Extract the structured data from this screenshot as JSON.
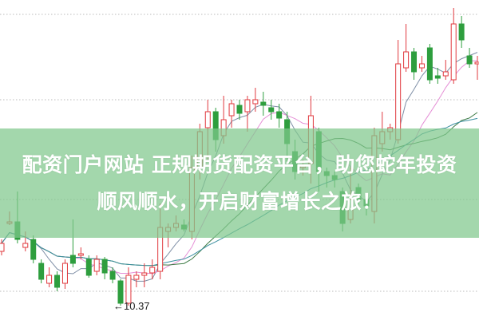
{
  "banner": {
    "line1": "配资门户网站 正规期货配资平台，助您蛇年投资",
    "line2": "顺风顺水，开启财富增长之旅！"
  },
  "chart_data": {
    "type": "candlestick",
    "title": "",
    "annotations": [
      {
        "text": "←10.37",
        "price": 10.37
      }
    ],
    "grid": "horizontal dotted",
    "colors": {
      "up": "#e0393e",
      "down": "#2e9e3e",
      "ma5": "#7f8fa6",
      "ma10": "#e58fd6",
      "ma20": "#3c7a44",
      "ma30": "#3b8fa0"
    },
    "moving_averages": [
      5,
      10,
      20,
      30
    ],
    "candles": [
      [
        11.05,
        11.15,
        11.2,
        11.0
      ],
      [
        11.4,
        11.42,
        11.55,
        11.38
      ],
      [
        11.42,
        11.2,
        11.8,
        11.15
      ],
      [
        11.1,
        11.15,
        11.3,
        11.05
      ],
      [
        11.2,
        10.95,
        11.25,
        10.9
      ],
      [
        10.9,
        10.7,
        10.95,
        10.65
      ],
      [
        10.65,
        10.75,
        10.85,
        10.6
      ],
      [
        10.75,
        10.6,
        10.8,
        10.55
      ],
      [
        10.65,
        10.9,
        10.95,
        10.58
      ],
      [
        11.0,
        10.9,
        11.45,
        10.85
      ],
      [
        11.0,
        11.02,
        11.1,
        10.95
      ],
      [
        10.95,
        10.75,
        11.0,
        10.72
      ],
      [
        10.8,
        10.95,
        11.0,
        10.75
      ],
      [
        10.95,
        10.78,
        10.98,
        10.7
      ],
      [
        10.8,
        10.7,
        10.85,
        10.65
      ],
      [
        10.68,
        10.4,
        10.7,
        10.37
      ],
      [
        10.4,
        10.75,
        10.85,
        10.37
      ],
      [
        10.7,
        10.75,
        10.8,
        10.6
      ],
      [
        10.75,
        10.78,
        10.9,
        10.6
      ],
      [
        10.78,
        10.85,
        10.95,
        10.7
      ],
      [
        10.8,
        11.35,
        11.65,
        10.7
      ],
      [
        11.3,
        11.35,
        11.4,
        11.1
      ],
      [
        11.35,
        11.4,
        11.5,
        11.3
      ],
      [
        11.38,
        11.33,
        11.45,
        11.3
      ],
      [
        11.3,
        12.1,
        12.25,
        11.2
      ],
      [
        12.1,
        12.55,
        12.65,
        11.95
      ],
      [
        12.6,
        12.8,
        12.95,
        12.2
      ],
      [
        12.8,
        12.45,
        12.85,
        12.3
      ],
      [
        12.5,
        12.7,
        13.0,
        12.4
      ],
      [
        12.75,
        12.9,
        12.95,
        12.6
      ],
      [
        12.88,
        12.78,
        12.95,
        12.7
      ],
      [
        12.8,
        12.95,
        13.0,
        12.55
      ],
      [
        12.9,
        12.95,
        13.1,
        12.8
      ],
      [
        12.92,
        12.88,
        13.05,
        12.75
      ],
      [
        12.85,
        12.8,
        12.95,
        12.7
      ],
      [
        12.8,
        12.72,
        12.9,
        12.6
      ],
      [
        12.7,
        12.4,
        12.8,
        12.15
      ],
      [
        12.3,
        12.05,
        12.45,
        11.95
      ],
      [
        12.1,
        12.12,
        12.2,
        12.0
      ],
      [
        12.15,
        12.75,
        13.0,
        11.9
      ],
      [
        12.55,
        12.05,
        12.6,
        11.8
      ],
      [
        12.05,
        12.0,
        12.1,
        11.85
      ],
      [
        12.0,
        11.95,
        12.05,
        11.85
      ],
      [
        11.8,
        11.4,
        11.85,
        11.3
      ],
      [
        11.45,
        11.7,
        12.1,
        11.4
      ],
      [
        11.85,
        11.7,
        11.9,
        11.6
      ],
      [
        11.7,
        11.62,
        11.72,
        11.5
      ],
      [
        11.55,
        12.5,
        12.6,
        11.4
      ],
      [
        12.4,
        12.55,
        12.8,
        12.3
      ],
      [
        12.55,
        12.6,
        12.65,
        12.45
      ],
      [
        12.45,
        13.4,
        13.7,
        12.4
      ],
      [
        13.35,
        13.55,
        13.9,
        13.3
      ],
      [
        13.55,
        13.3,
        13.6,
        13.2
      ],
      [
        13.35,
        13.4,
        13.5,
        13.3
      ],
      [
        13.6,
        13.2,
        13.65,
        13.15
      ],
      [
        13.25,
        13.22,
        13.35,
        13.15
      ],
      [
        13.25,
        13.3,
        13.45,
        13.2
      ],
      [
        13.2,
        13.9,
        14.1,
        13.15
      ],
      [
        13.9,
        13.7,
        14.0,
        13.6
      ],
      [
        13.5,
        13.4,
        13.6,
        13.35
      ],
      [
        13.4,
        13.42,
        13.5,
        13.2
      ]
    ],
    "candle_format": [
      "open",
      "close",
      "high",
      "low"
    ]
  }
}
